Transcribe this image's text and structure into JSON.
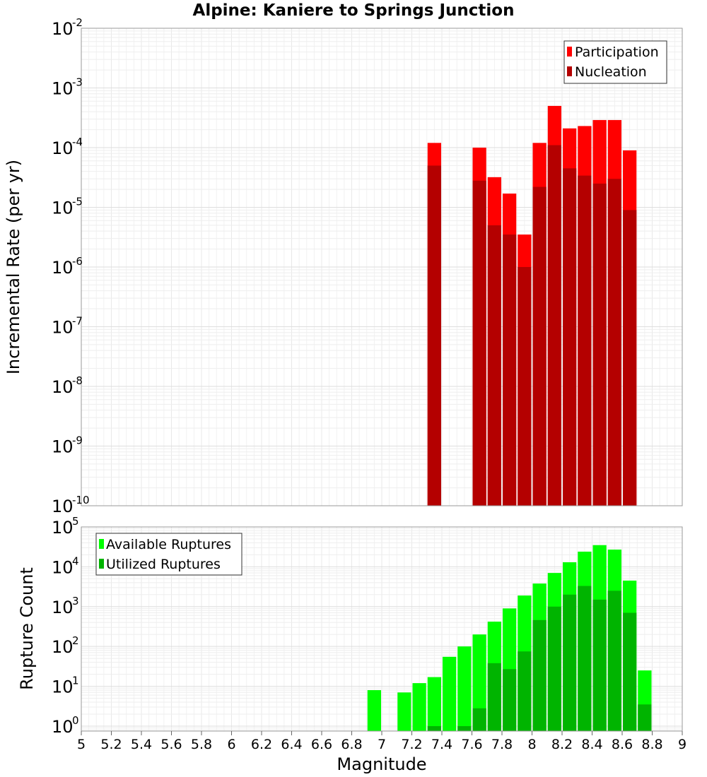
{
  "chart_data": [
    {
      "type": "bar",
      "title": "Alpine: Kaniere to Springs Junction",
      "xlabel": "Magnitude",
      "ylabel": "Incremental Rate (per yr)",
      "yscale": "log",
      "ylim": [
        1e-10,
        0.01
      ],
      "xlim": [
        5,
        9
      ],
      "grid": true,
      "legend_position": "top-right",
      "ytick_exponents": [
        "-2",
        "-3",
        "-4",
        "-5",
        "-6",
        "-7",
        "-8",
        "-9",
        "-10"
      ],
      "x": [
        7.35,
        7.65,
        7.75,
        7.85,
        7.95,
        8.05,
        8.15,
        8.25,
        8.35,
        8.45,
        8.55,
        8.65
      ],
      "series": [
        {
          "name": "Participation",
          "color": "#ff0000",
          "values": [
            0.00012,
            0.0001,
            3.2e-05,
            1.7e-05,
            3.5e-06,
            0.00012,
            0.0005,
            0.00021,
            0.00023,
            0.00029,
            0.00029,
            9e-05
          ]
        },
        {
          "name": "Nucleation",
          "color": "#b40000",
          "values": [
            5e-05,
            2.8e-05,
            5e-06,
            3.5e-06,
            1e-06,
            2.2e-05,
            0.00011,
            4.5e-05,
            3.4e-05,
            2.5e-05,
            3e-05,
            9e-06
          ]
        }
      ]
    },
    {
      "type": "bar",
      "xlabel": "Magnitude",
      "ylabel": "Rupture Count",
      "yscale": "log",
      "ylim": [
        0.75,
        100000.0
      ],
      "xlim": [
        5,
        9
      ],
      "grid": true,
      "legend_position": "top-left",
      "ytick_exponents": [
        "5",
        "4",
        "3",
        "2",
        "1",
        "0"
      ],
      "xticks": [
        "5",
        "5.2",
        "5.4",
        "5.6",
        "5.8",
        "6",
        "6.2",
        "6.4",
        "6.6",
        "6.8",
        "7",
        "7.2",
        "7.4",
        "7.6",
        "7.8",
        "8",
        "8.2",
        "8.4",
        "8.6",
        "8.8",
        "9"
      ],
      "x": [
        6.95,
        7.15,
        7.25,
        7.35,
        7.45,
        7.55,
        7.65,
        7.75,
        7.85,
        7.95,
        8.05,
        8.15,
        8.25,
        8.35,
        8.45,
        8.55,
        8.65,
        8.75
      ],
      "series": [
        {
          "name": "Available Ruptures",
          "color": "#00ff00",
          "values": [
            8,
            7,
            12,
            17,
            55,
            100,
            200,
            420,
            900,
            1900,
            3800,
            7000,
            13000,
            24000,
            35000,
            27000,
            4500,
            25
          ]
        },
        {
          "name": "Utilized Ruptures",
          "color": "#00b400",
          "values": [
            null,
            null,
            null,
            1,
            null,
            1,
            2.8,
            38,
            27,
            75,
            460,
            1000,
            2000,
            3300,
            1500,
            2500,
            700,
            3.5
          ]
        }
      ]
    }
  ]
}
